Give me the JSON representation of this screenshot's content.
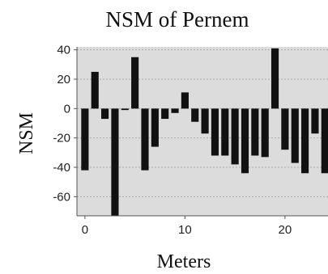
{
  "chart_data": {
    "type": "bar",
    "title": "NSM of Pernem",
    "xlabel": "Meters",
    "ylabel": "NSM",
    "x": [
      0,
      1,
      2,
      3,
      4,
      5,
      6,
      7,
      8,
      9,
      10,
      11,
      12,
      13,
      14,
      15,
      16,
      17,
      18,
      19,
      20,
      21,
      22,
      23,
      24
    ],
    "values": [
      -42,
      25,
      -7,
      -73,
      -1,
      35,
      -42,
      -26,
      -7,
      -3,
      11,
      -9,
      -17,
      -32,
      -32,
      -38,
      -44,
      -32,
      -33,
      41,
      -28,
      -37,
      -44,
      -17,
      -44
    ],
    "xlim": [
      -0.8,
      24.3
    ],
    "ylim": [
      -73,
      42
    ],
    "xticks": [
      0,
      10,
      20
    ],
    "yticks": [
      40,
      20,
      0,
      -20,
      -40,
      -60
    ],
    "grid": true,
    "colors": {
      "bar": "#111111",
      "plot_background": "#dcdcdc",
      "grid": "#aaaaaa",
      "axis": "#555555"
    }
  }
}
